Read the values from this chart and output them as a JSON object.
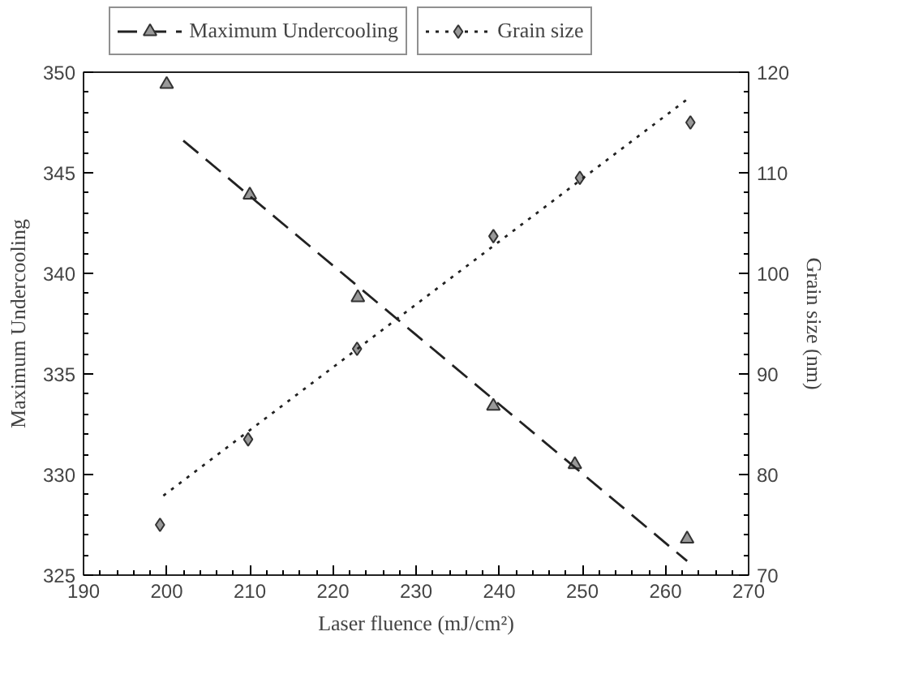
{
  "chart_data": {
    "type": "scatter",
    "xlabel": "Laser fluence (mJ/cm²)",
    "ylabel": "Maximum Undercooling",
    "y2label": "Grain size (nm)",
    "xlim": [
      190,
      270
    ],
    "xticks": [
      190,
      200,
      210,
      220,
      230,
      240,
      250,
      260,
      270
    ],
    "ylim": [
      325,
      350
    ],
    "yticks": [
      325,
      330,
      335,
      340,
      345,
      350
    ],
    "y2lim": [
      70,
      120
    ],
    "y2ticks": [
      70,
      80,
      90,
      100,
      110,
      120
    ],
    "legend": "top",
    "grid": false,
    "series": [
      {
        "name": "Maximum Undercooling",
        "marker": "triangle",
        "color": "#333333",
        "x": [
          200,
          210,
          223,
          239.3,
          249.1,
          262.6
        ],
        "values": [
          349.4,
          343.9,
          338.8,
          333.4,
          330.5,
          326.8
        ]
      },
      {
        "type": "line",
        "line_style": "dashed",
        "color": "#222222",
        "x": [
          202,
          262.6
        ],
        "values": [
          346.6,
          325.7
        ]
      },
      {
        "name": "Grain size",
        "marker": "diamond",
        "axis": "y2",
        "color": "#333333",
        "x": [
          199.2,
          209.8,
          222.9,
          239.3,
          249.7,
          263
        ],
        "values": [
          75,
          83.5,
          92.5,
          103.7,
          109.5,
          115
        ]
      },
      {
        "type": "line",
        "line_style": "dotted",
        "axis": "y2",
        "color": "#222222",
        "x": [
          199.6,
          262.6
        ],
        "values": [
          77.9,
          117.3
        ]
      }
    ]
  }
}
